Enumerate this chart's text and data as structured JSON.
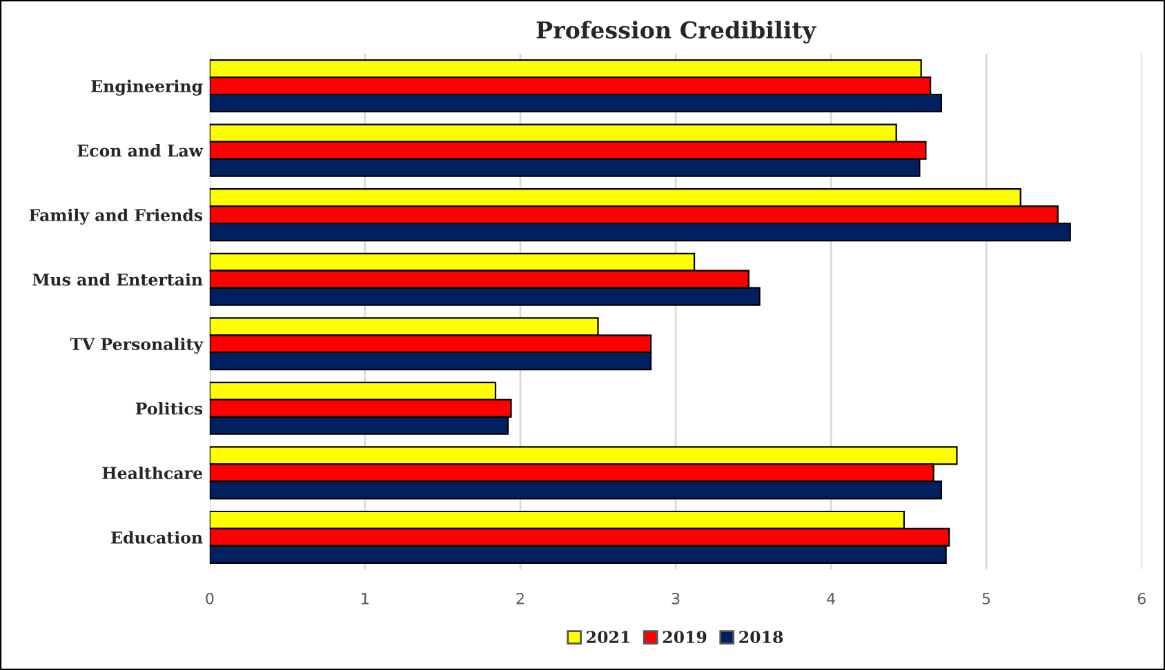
{
  "chart_data": {
    "type": "bar",
    "orientation": "horizontal",
    "title": "Profession Credibility",
    "categories": [
      "Engineering",
      "Econ and Law",
      "Family and Friends",
      "Mus and Entertain",
      "TV Personality",
      "Politics",
      "Healthcare",
      "Education"
    ],
    "series": [
      {
        "name": "2021",
        "color": "#ffff00",
        "values": [
          4.58,
          4.42,
          5.22,
          3.12,
          2.5,
          1.84,
          4.81,
          4.47
        ]
      },
      {
        "name": "2019",
        "color": "#ff0000",
        "values": [
          4.64,
          4.61,
          5.46,
          3.47,
          2.84,
          1.94,
          4.66,
          4.76
        ]
      },
      {
        "name": "2018",
        "color": "#002060",
        "values": [
          4.71,
          4.57,
          5.54,
          3.54,
          2.84,
          1.92,
          4.71,
          4.74
        ]
      }
    ],
    "xlim": [
      0,
      6
    ],
    "xticks": [
      0,
      1,
      2,
      3,
      4,
      5,
      6
    ],
    "grid": "x",
    "legend": "bottom"
  }
}
